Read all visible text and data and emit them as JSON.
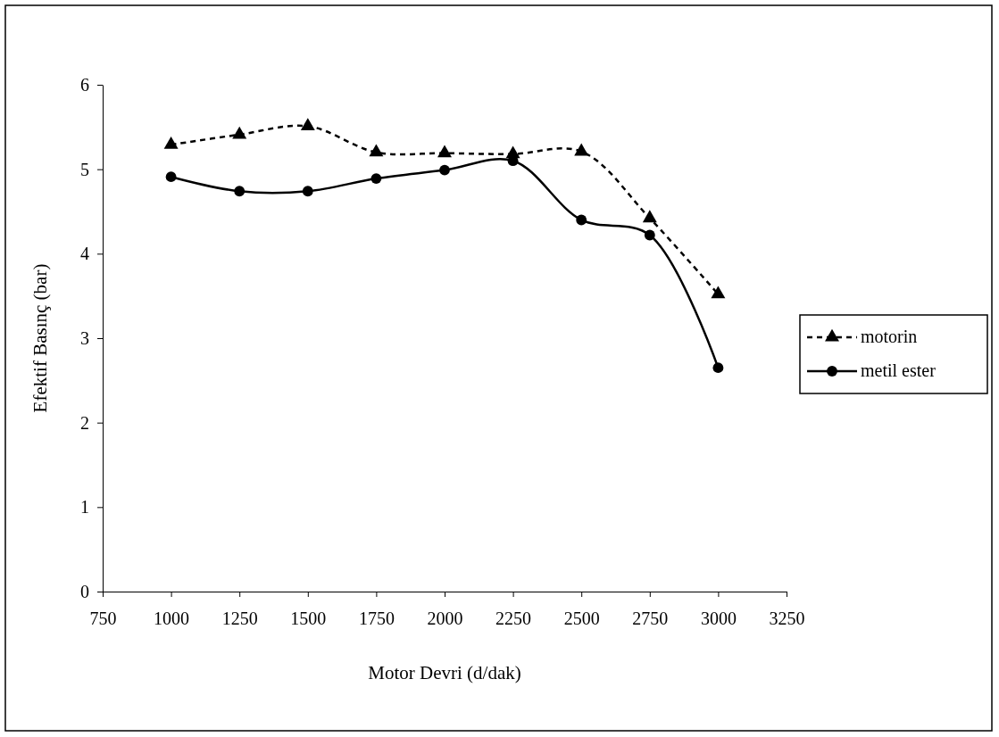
{
  "chart_data": {
    "type": "line",
    "xlabel": "Motor Devri (d/dak)",
    "ylabel": "Efektif Basınç (bar)",
    "x": [
      1000,
      1250,
      1500,
      1750,
      2000,
      2250,
      2500,
      2750,
      3000
    ],
    "xlim": [
      750,
      3250
    ],
    "xticks": [
      750,
      1000,
      1250,
      1500,
      1750,
      2000,
      2250,
      2500,
      2750,
      3000,
      3250
    ],
    "ylim": [
      0,
      6
    ],
    "yticks": [
      0,
      1,
      2,
      3,
      4,
      5,
      6
    ],
    "grid": false,
    "legend": "right",
    "series": [
      {
        "name": "motorin",
        "color": "#000000",
        "marker": "triangle",
        "line_style": "dashed",
        "values": [
          5.29,
          5.41,
          5.51,
          5.2,
          5.19,
          5.18,
          5.21,
          4.42,
          3.52
        ]
      },
      {
        "name": "metil ester",
        "color": "#000000",
        "marker": "circle",
        "line_style": "solid",
        "values": [
          4.91,
          4.74,
          4.74,
          4.89,
          4.99,
          5.1,
          4.4,
          4.22,
          2.65
        ]
      }
    ]
  }
}
